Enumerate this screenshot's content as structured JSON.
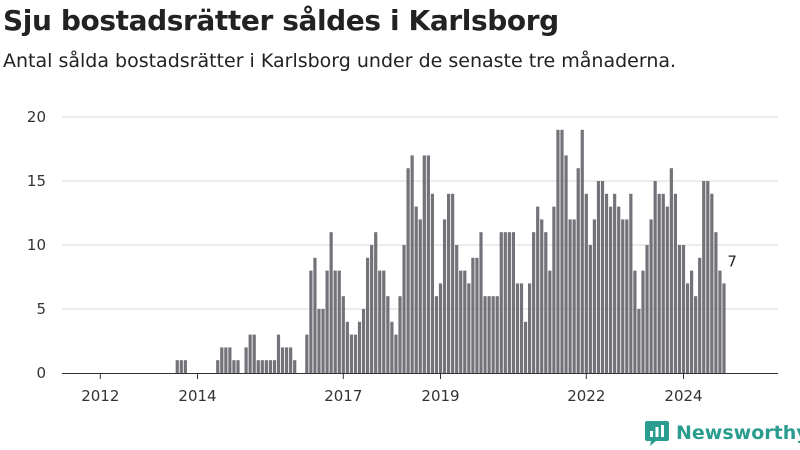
{
  "header": {
    "title": "Sju bostadsrätter såldes i Karlsborg",
    "subtitle": "Antal sålda bostadsrätter i Karlsborg under de senaste tre månaderna."
  },
  "brand": {
    "name": "Newsworthy"
  },
  "colors": {
    "bar": "#737278",
    "highlight": "#1a9a8e",
    "grid": "#d9d9d9"
  },
  "chart_data": {
    "type": "bar",
    "title": "",
    "xlabel": "",
    "ylabel": "",
    "ylim": [
      0,
      20
    ],
    "y_ticks": [
      0,
      5,
      10,
      15,
      20
    ],
    "x_tick_labels": [
      "2012",
      "2014",
      "2017",
      "2019",
      "2022",
      "2024"
    ],
    "x_ticks": [
      {
        "label": "2012",
        "index": 6
      },
      {
        "label": "2014",
        "index": 30
      },
      {
        "label": "2017",
        "index": 66
      },
      {
        "label": "2019",
        "index": 90
      },
      {
        "label": "2022",
        "index": 126
      },
      {
        "label": "2024",
        "index": 150
      }
    ],
    "grid": true,
    "highlight": {
      "index": 162,
      "value": 7,
      "label": "7"
    },
    "values": [
      0,
      0,
      0,
      0,
      0,
      0,
      0,
      0,
      0,
      0,
      0,
      0,
      0,
      0,
      0,
      0,
      0,
      0,
      0,
      0,
      0,
      0,
      0,
      0,
      0,
      1,
      1,
      1,
      0,
      0,
      0,
      0,
      0,
      0,
      0,
      1,
      2,
      2,
      2,
      1,
      1,
      0,
      2,
      3,
      3,
      1,
      1,
      1,
      1,
      1,
      3,
      2,
      2,
      2,
      1,
      0,
      0,
      3,
      8,
      9,
      5,
      5,
      8,
      11,
      8,
      8,
      6,
      4,
      3,
      3,
      4,
      5,
      9,
      10,
      11,
      8,
      8,
      6,
      4,
      3,
      6,
      10,
      16,
      17,
      13,
      12,
      17,
      17,
      14,
      6,
      7,
      12,
      14,
      14,
      10,
      8,
      8,
      7,
      9,
      9,
      11,
      6,
      6,
      6,
      6,
      11,
      11,
      11,
      11,
      7,
      7,
      4,
      7,
      11,
      13,
      12,
      11,
      8,
      13,
      19,
      19,
      17,
      12,
      12,
      16,
      19,
      14,
      10,
      12,
      15,
      15,
      14,
      13,
      14,
      13,
      12,
      12,
      14,
      8,
      5,
      8,
      10,
      12,
      15,
      14,
      14,
      13,
      16,
      14,
      10,
      10,
      7,
      8,
      6,
      9,
      15,
      15,
      14,
      11,
      8,
      7
    ]
  }
}
